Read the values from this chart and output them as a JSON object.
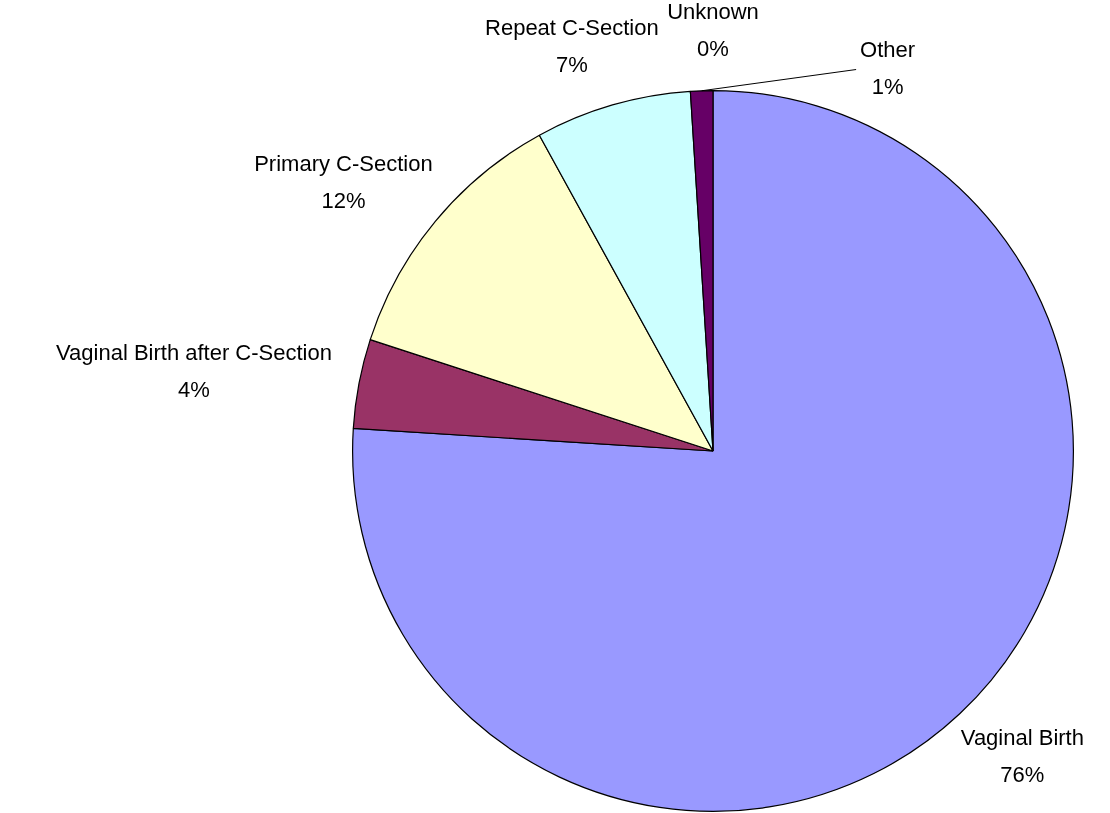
{
  "chart_data": {
    "type": "pie",
    "categories": [
      "Vaginal Birth",
      "Vaginal Birth after C-Section",
      "Primary C-Section",
      "Repeat C-Section",
      "Other",
      "Unknown"
    ],
    "values": [
      76,
      4,
      12,
      7,
      1,
      0
    ],
    "colors": [
      "#9999ff",
      "#993366",
      "#ffffcc",
      "#ccffff",
      "#660066",
      "#ff8080"
    ],
    "value_labels": [
      "76%",
      "4%",
      "12%",
      "7%",
      "1%",
      "0%"
    ]
  }
}
